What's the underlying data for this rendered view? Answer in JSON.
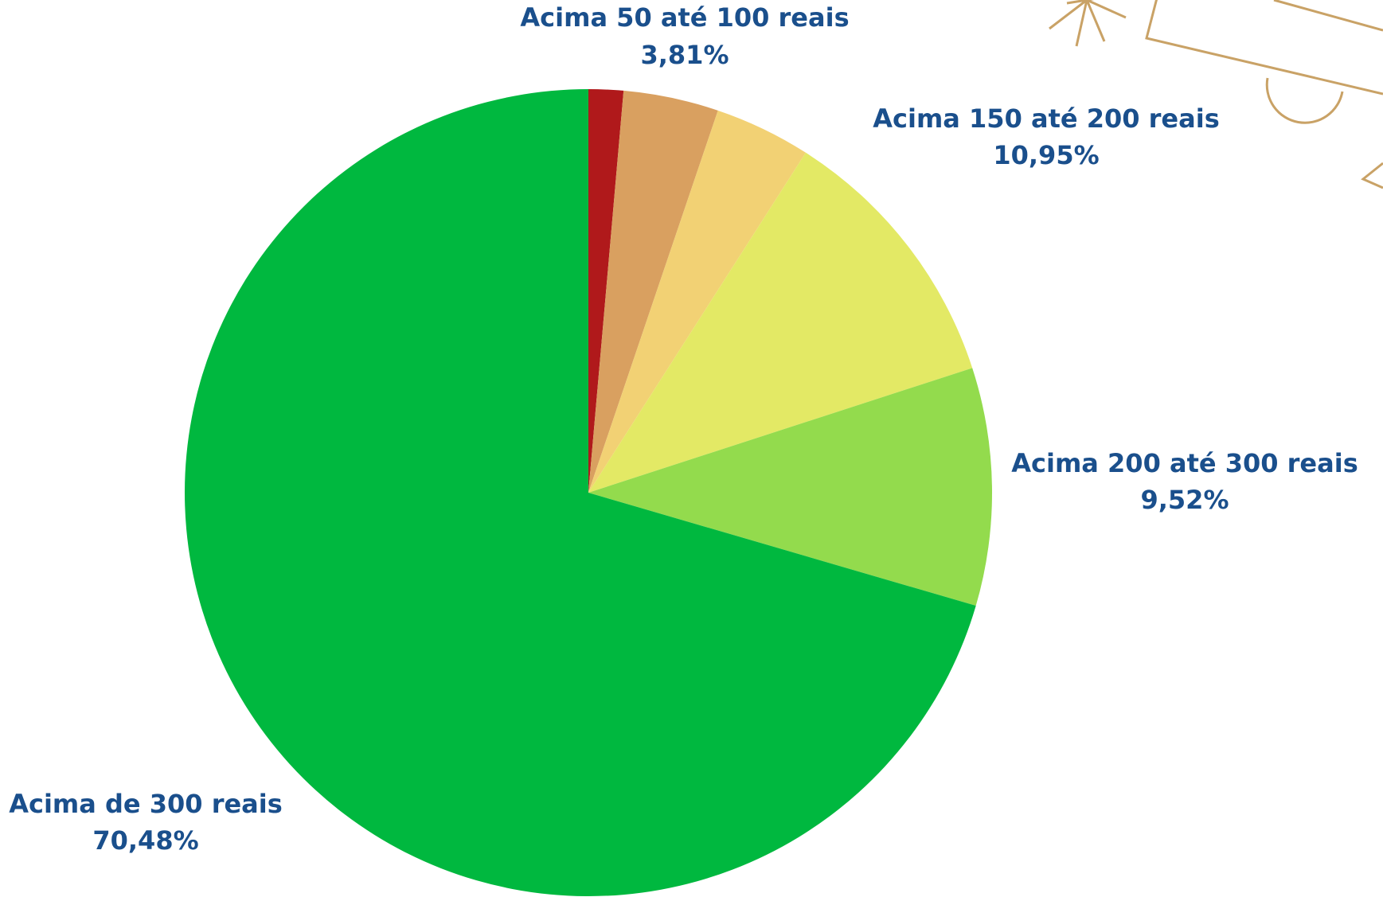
{
  "chart_data": {
    "type": "pie",
    "categories": [
      null,
      "Acima 50 até 100 reais",
      null,
      "Acima 150 até 200 reais",
      "Acima 200 até 300 reais",
      "Acima de 300 reais"
    ],
    "values": [
      1.39,
      3.81,
      3.85,
      10.95,
      9.52,
      70.48
    ],
    "value_labels": [
      null,
      "3,81%",
      null,
      "10,95%",
      "9,52%",
      "70,48%"
    ],
    "colors": [
      "#b0191b",
      "#d9a060",
      "#f2d174",
      "#e3e965",
      "#93db4d",
      "#00b83f"
    ]
  }
}
